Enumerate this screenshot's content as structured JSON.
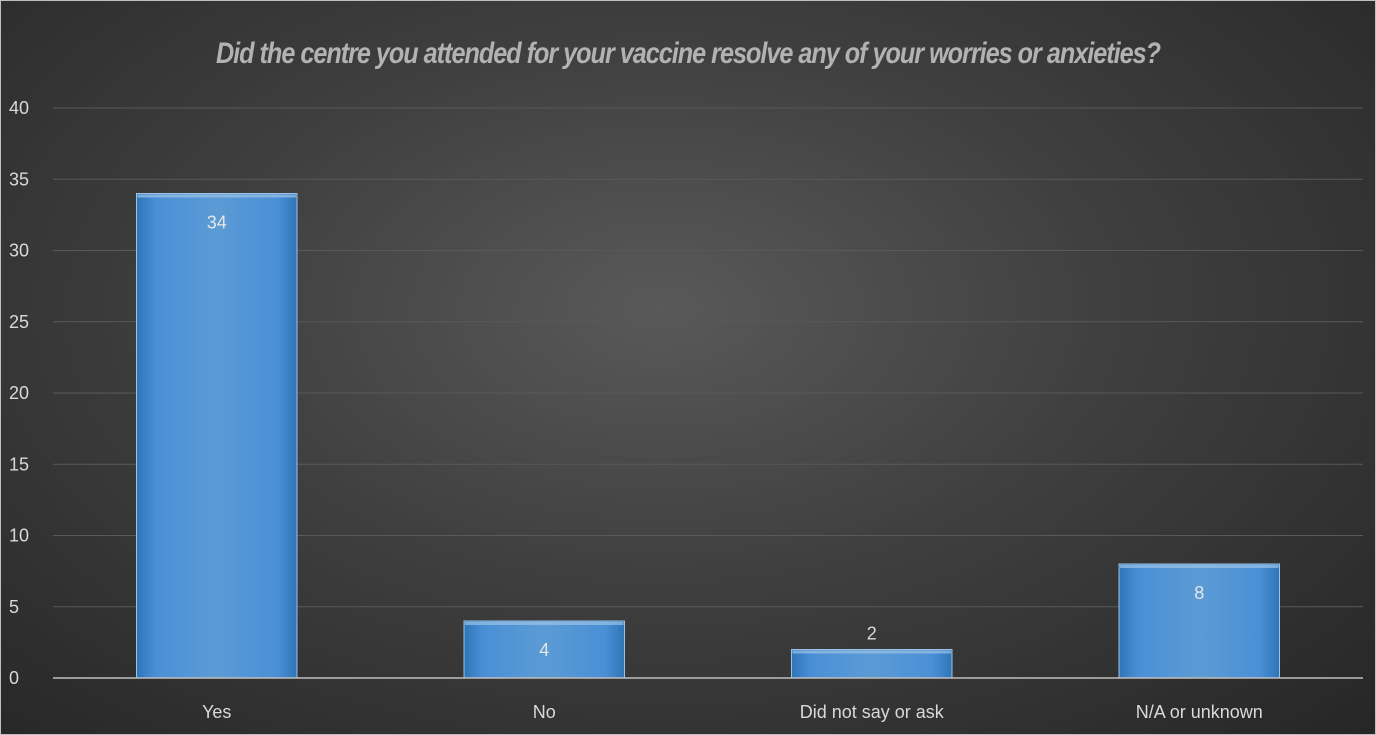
{
  "chart_data": {
    "type": "bar",
    "title": "Did the centre you attended for your vaccine resolve any of your worries or anxieties?",
    "xlabel": "",
    "ylabel": "",
    "categories": [
      "Yes",
      "No",
      "Did not say or ask",
      "N/A or unknown"
    ],
    "values": [
      34,
      4,
      2,
      8
    ],
    "data_labels": [
      "34",
      "4",
      "2",
      "8"
    ],
    "ylim": [
      0,
      40
    ],
    "yticks": [
      0,
      5,
      10,
      15,
      20,
      25,
      30,
      35,
      40
    ],
    "ytick_labels": [
      "0",
      "5",
      "10",
      "15",
      "20",
      "25",
      "30",
      "35",
      "40"
    ],
    "grid": true,
    "legend": "none"
  },
  "colors": {
    "bar_light": "#5b9bd5",
    "bar_dark": "#2e75b6",
    "bar_edge": "#9dc3e6",
    "grid": "#595959",
    "axis": "#bfbfbf",
    "label_inside": "#e6e6e6",
    "label_outside": "#d9d9d9"
  }
}
